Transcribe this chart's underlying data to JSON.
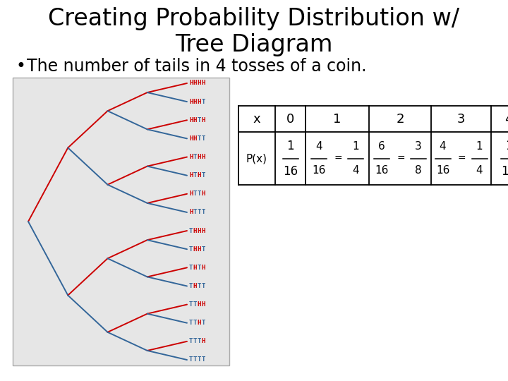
{
  "title_line1": "Creating Probability Distribution w/",
  "title_line2": "Tree Diagram",
  "bullet": "The number of tails in 4 tosses of a coin.",
  "bg_color": "#ffffff",
  "tree_bg": "#e6e6e6",
  "outcomes": [
    "HHHH",
    "HHHT",
    "HHTH",
    "HHTT",
    "HTHH",
    "HTHT",
    "HTTH",
    "HTTT",
    "THHH",
    "THHT",
    "THTH",
    "THTT",
    "TTHH",
    "TTHT",
    "TTTH",
    "TTTT"
  ],
  "h_color": "#cc0000",
  "t_color": "#336699"
}
